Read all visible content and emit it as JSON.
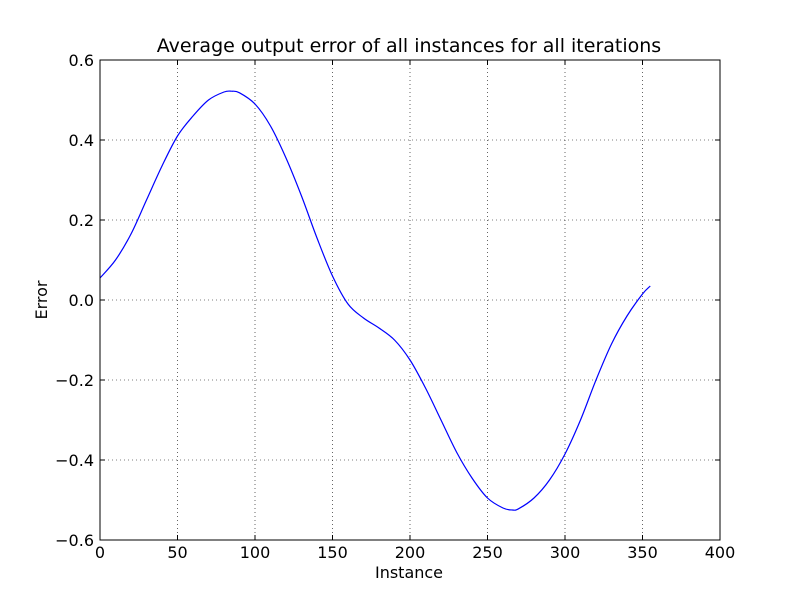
{
  "chart_data": {
    "type": "line",
    "title": "Average output error of all instances for all iterations",
    "xlabel": "Instance",
    "ylabel": "Error",
    "xlim": [
      0,
      400
    ],
    "ylim": [
      -0.6,
      0.6
    ],
    "xticks": [
      0,
      50,
      100,
      150,
      200,
      250,
      300,
      350,
      400
    ],
    "xtick_labels": [
      "0",
      "50",
      "100",
      "150",
      "200",
      "250",
      "300",
      "350",
      "400"
    ],
    "yticks": [
      -0.6,
      -0.4,
      -0.2,
      0.0,
      0.2,
      0.4,
      0.6
    ],
    "ytick_labels": [
      "−0.6",
      "−0.4",
      "−0.2",
      "0.0",
      "0.2",
      "0.4",
      "0.6"
    ],
    "grid": true,
    "series": [
      {
        "color": "#0000ff",
        "x": [
          0,
          10,
          20,
          30,
          40,
          50,
          60,
          70,
          80,
          85,
          90,
          100,
          110,
          120,
          130,
          140,
          150,
          160,
          170,
          180,
          190,
          200,
          210,
          220,
          230,
          240,
          250,
          260,
          266,
          270,
          280,
          290,
          300,
          310,
          320,
          330,
          340,
          350,
          355
        ],
        "y": [
          0.055,
          0.1,
          0.165,
          0.25,
          0.335,
          0.41,
          0.46,
          0.5,
          0.52,
          0.522,
          0.518,
          0.49,
          0.435,
          0.355,
          0.26,
          0.155,
          0.06,
          -0.01,
          -0.045,
          -0.07,
          -0.1,
          -0.15,
          -0.22,
          -0.3,
          -0.38,
          -0.445,
          -0.495,
          -0.52,
          -0.525,
          -0.522,
          -0.495,
          -0.45,
          -0.385,
          -0.3,
          -0.2,
          -0.11,
          -0.04,
          0.015,
          0.035
        ]
      }
    ]
  }
}
